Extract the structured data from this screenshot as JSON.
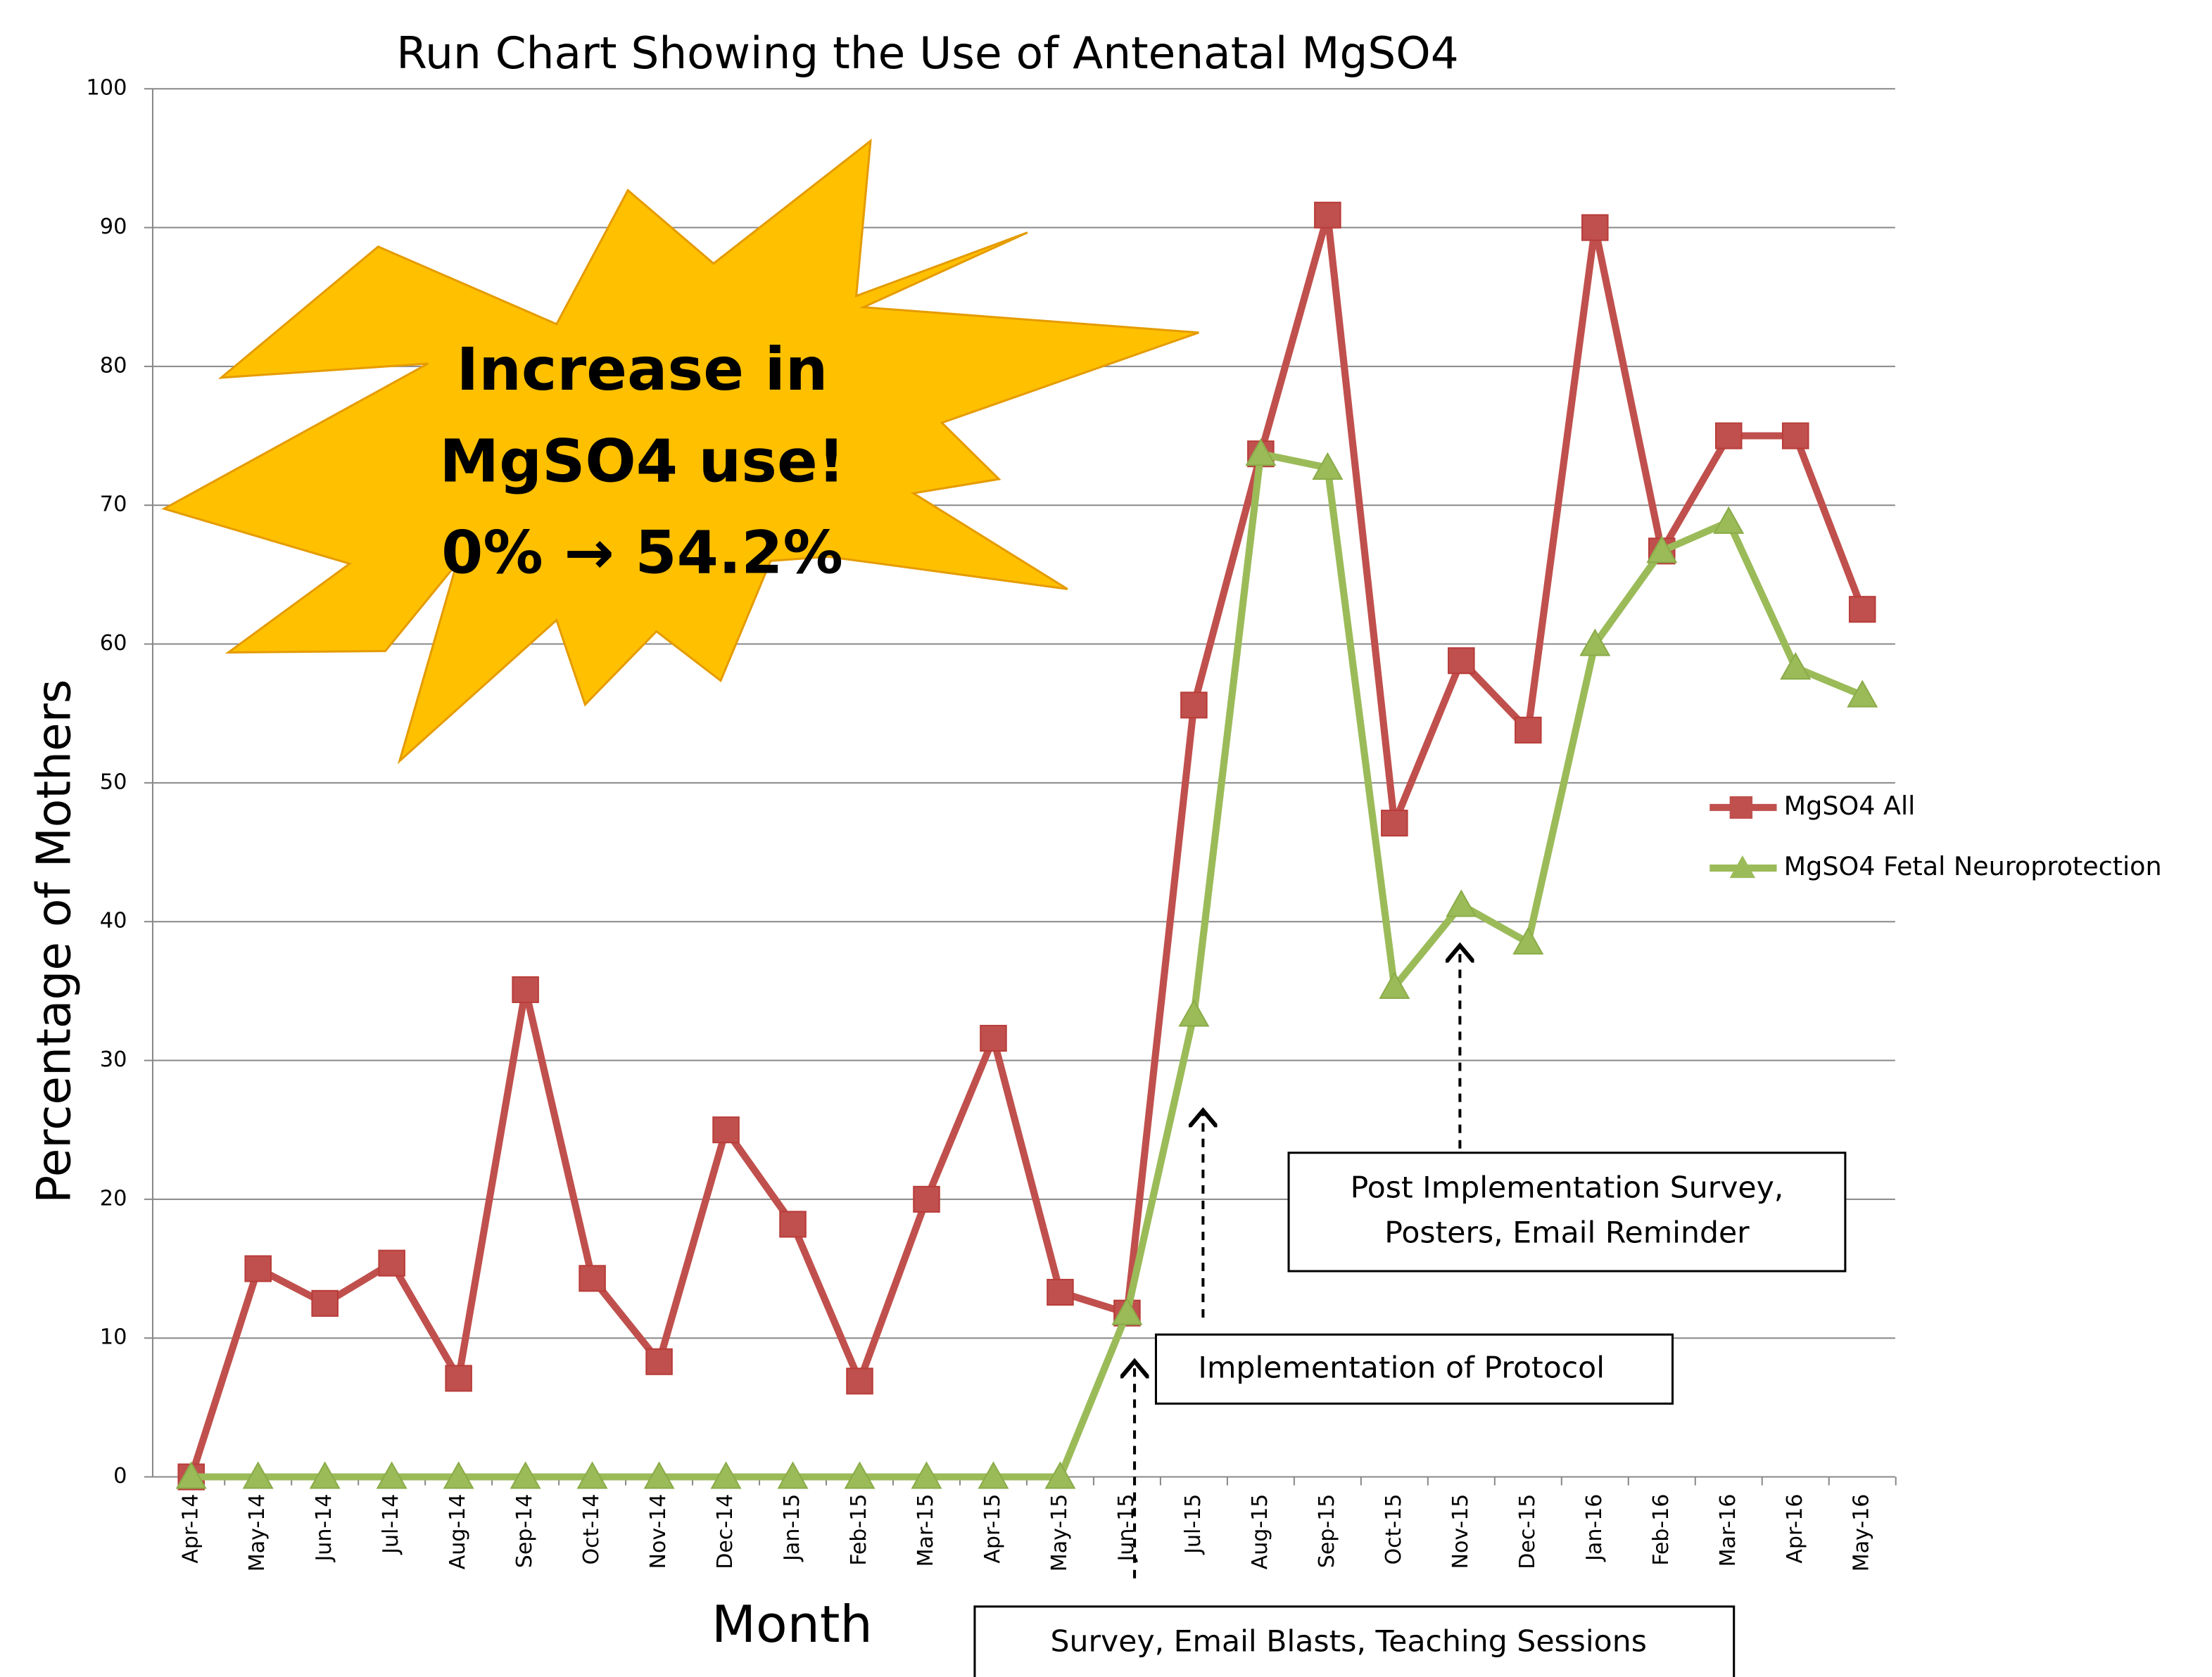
{
  "chart_data": {
    "type": "line",
    "title": "Run Chart Showing the Use of Antenatal MgSO4",
    "x_label": "Month",
    "y_label": "Percentage of Mothers",
    "categories": [
      "Apr-14",
      "May-14",
      "Jun-14",
      "Jul-14",
      "Aug-14",
      "Sep-14",
      "Oct-14",
      "Nov-14",
      "Dec-14",
      "Jan-15",
      "Feb-15",
      "Mar-15",
      "Apr-15",
      "May-15",
      "Jun-15",
      "Jul-15",
      "Aug-15",
      "Sep-15",
      "Oct-15",
      "Nov-15",
      "Dec-15",
      "Jan-16",
      "Feb-16",
      "Mar-16",
      "Apr-16",
      "May-16"
    ],
    "series": [
      {
        "name": "MgSO4 All",
        "color": "#c0504d",
        "marker": "square",
        "values": [
          0,
          15,
          12.5,
          15.4,
          7.1,
          35.1,
          14.3,
          8.3,
          25,
          18.2,
          6.9,
          20,
          31.6,
          13.3,
          11.8,
          55.6,
          73.7,
          90.9,
          47.1,
          58.8,
          53.8,
          90,
          66.7,
          75,
          75,
          62.5
        ]
      },
      {
        "name": "MgSO4 Fetal Neuroprotection",
        "color": "#9bbb59",
        "marker": "triangle",
        "values": [
          0,
          0,
          0,
          0,
          0,
          0,
          0,
          0,
          0,
          0,
          0,
          0,
          0,
          0,
          11.8,
          33.3,
          73.7,
          72.7,
          35.3,
          41.2,
          38.5,
          60,
          66.7,
          68.8,
          58.3,
          56.3
        ]
      }
    ],
    "ylim": [
      0,
      100
    ],
    "yticks": [
      0,
      10,
      20,
      30,
      40,
      50,
      60,
      70,
      80,
      90,
      100
    ],
    "grid": true,
    "legend": "right",
    "callout": [
      "Increase in",
      "MgSO4 use!",
      "0% → 54.2%"
    ],
    "annotations": [
      "Implementation of Protocol",
      "Survey, Email Blasts, Teaching Sessions",
      "Post Implementation Survey,",
      "Posters, Email Reminder"
    ]
  }
}
